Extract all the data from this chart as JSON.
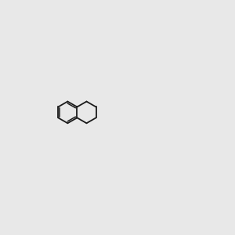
{
  "bg_color": "#e8e8e8",
  "bond_color": "#1a1a1a",
  "oxygen_color": "#cc0000",
  "nitrogen_color": "#3399aa",
  "nitrogen2_color": "#0000cc",
  "sulfur_color": "#aaaa00",
  "figsize": [
    3.0,
    3.0
  ],
  "dpi": 100,
  "lw": 1.3,
  "lw2": 1.1
}
